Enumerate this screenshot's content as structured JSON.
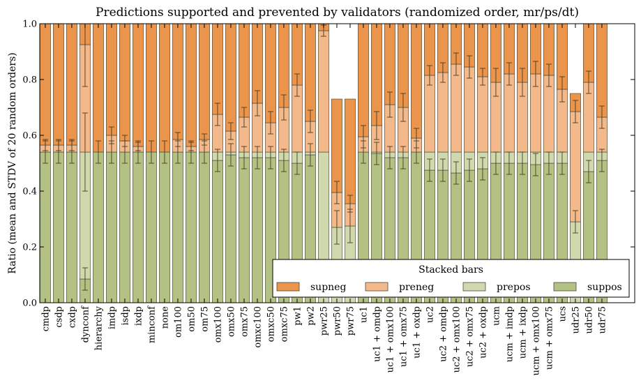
{
  "chart_data": {
    "type": "bar",
    "stacked": true,
    "title": "Predictions supported and prevented by validators (randomized order, mr/ps/dt)",
    "xlabel": "",
    "ylabel": "Ratio (mean and STDV of 20 random orders)",
    "ylim": [
      0,
      1
    ],
    "yticks": [
      "0.0",
      "0.2",
      "0.4",
      "0.6",
      "0.8",
      "1.0"
    ],
    "grid": false,
    "legend": {
      "title": "Stacked bars",
      "placement": "lower-right",
      "entries": [
        "supneg",
        "preneg",
        "prepos",
        "suppos"
      ]
    },
    "colors": {
      "supneg": "#eb944b",
      "preneg": "#f3b98a",
      "prepos": "#d0d9ad",
      "suppos": "#b3c182",
      "edge": "#3d3d2e"
    },
    "categories": [
      "cmdp",
      "csdp",
      "cxdp",
      "dynconf",
      "hierarchy",
      "imdp",
      "isdp",
      "ixdp",
      "minconf",
      "none",
      "om100",
      "om50",
      "om75",
      "omx100",
      "omx50",
      "omx75",
      "omxc100",
      "omxc50",
      "omxc75",
      "pw1",
      "pw2",
      "pwr25",
      "pwr50",
      "pwr75",
      "uc1",
      "uc1 + omdp",
      "uc1 + omx100",
      "uc1 + omx75",
      "uc1 + oxdp",
      "uc2",
      "uc2 + omdp",
      "uc2 + omx100",
      "uc2 + omx75",
      "uc2 + oxdp",
      "ucm",
      "ucm + imdp",
      "ucm + ixdp",
      "ucm + omx100",
      "ucm + omx75",
      "ucs",
      "udr25",
      "udr50",
      "udr75"
    ],
    "series": [
      {
        "name": "suppos",
        "values": [
          0.54,
          0.54,
          0.54,
          0.085,
          0.54,
          0.54,
          0.54,
          0.54,
          0.54,
          0.54,
          0.54,
          0.54,
          0.54,
          0.51,
          0.53,
          0.52,
          0.52,
          0.52,
          0.51,
          0.5,
          0.53,
          0.0,
          0.0,
          0.0,
          0.54,
          0.535,
          0.52,
          0.52,
          0.54,
          0.475,
          0.475,
          0.465,
          0.475,
          0.48,
          0.5,
          0.5,
          0.5,
          0.495,
          0.5,
          0.5,
          0.0,
          0.47,
          0.51
        ]
      },
      {
        "name": "prepos",
        "values": [
          0.0,
          0.0,
          0.0,
          0.455,
          0.0,
          0.0,
          0.0,
          0.0,
          0.0,
          0.0,
          0.0,
          0.0,
          0.0,
          0.03,
          0.01,
          0.02,
          0.02,
          0.02,
          0.03,
          0.04,
          0.01,
          0.54,
          0.27,
          0.275,
          0.0,
          0.005,
          0.02,
          0.02,
          0.0,
          0.065,
          0.065,
          0.075,
          0.065,
          0.06,
          0.04,
          0.04,
          0.04,
          0.045,
          0.04,
          0.04,
          0.29,
          0.07,
          0.03
        ]
      },
      {
        "name": "preneg",
        "values": [
          0.025,
          0.025,
          0.025,
          0.385,
          0.0,
          0.06,
          0.04,
          0.02,
          0.0,
          0.0,
          0.045,
          0.02,
          0.045,
          0.135,
          0.075,
          0.125,
          0.175,
          0.105,
          0.16,
          0.24,
          0.11,
          0.435,
          0.125,
          0.08,
          0.055,
          0.095,
          0.17,
          0.16,
          0.05,
          0.275,
          0.285,
          0.315,
          0.305,
          0.27,
          0.25,
          0.28,
          0.25,
          0.28,
          0.275,
          0.225,
          0.395,
          0.25,
          0.125
        ]
      },
      {
        "name": "supneg",
        "values": [
          0.435,
          0.435,
          0.435,
          0.075,
          0.46,
          0.4,
          0.42,
          0.44,
          0.46,
          0.46,
          0.415,
          0.44,
          0.415,
          0.325,
          0.385,
          0.335,
          0.285,
          0.355,
          0.3,
          0.22,
          0.35,
          0.025,
          0.335,
          0.375,
          0.405,
          0.365,
          0.29,
          0.3,
          0.41,
          0.185,
          0.175,
          0.145,
          0.155,
          0.19,
          0.21,
          0.18,
          0.21,
          0.18,
          0.185,
          0.235,
          0.065,
          0.21,
          0.335
        ]
      }
    ],
    "stdv": {
      "suppos": [
        0.04,
        0.04,
        0.04,
        0.04,
        0.04,
        0.04,
        0.04,
        0.04,
        0.04,
        0.04,
        0.04,
        0.04,
        0.04,
        0.04,
        0.04,
        0.04,
        0.04,
        0.04,
        0.04,
        0.04,
        0.04,
        0,
        0,
        0,
        0.04,
        0.04,
        0.04,
        0.04,
        0.04,
        0.04,
        0.04,
        0.04,
        0.04,
        0.04,
        0.04,
        0.04,
        0.04,
        0.04,
        0.04,
        0.04,
        0,
        0.04,
        0.04
      ],
      "prepos": [
        0,
        0,
        0,
        0.14,
        0,
        0,
        0,
        0,
        0,
        0,
        0,
        0,
        0,
        0,
        0,
        0,
        0,
        0,
        0,
        0,
        0,
        0,
        0.06,
        0.06,
        0,
        0,
        0,
        0,
        0,
        0,
        0,
        0,
        0,
        0,
        0,
        0,
        0,
        0,
        0,
        0,
        0.04,
        0,
        0
      ],
      "preneg": [
        0.02,
        0.02,
        0.02,
        0.15,
        0,
        0.03,
        0.02,
        0.015,
        0,
        0,
        0.025,
        0.015,
        0.02,
        0.04,
        0.03,
        0.035,
        0.045,
        0.04,
        0.045,
        0.04,
        0.04,
        0.02,
        0.04,
        0.03,
        0.04,
        0.05,
        0.045,
        0.05,
        0.035,
        0.035,
        0.035,
        0.04,
        0.04,
        0.03,
        0.05,
        0.04,
        0.05,
        0.045,
        0.04,
        0.045,
        0.04,
        0.04,
        0.04
      ]
    }
  }
}
